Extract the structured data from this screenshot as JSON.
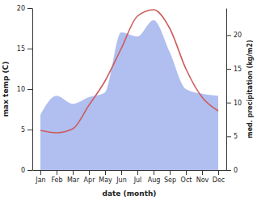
{
  "chart_data": {
    "type": "line",
    "categories": [
      "Jan",
      "Feb",
      "Mar",
      "Apr",
      "May",
      "Jun",
      "Jul",
      "Aug",
      "Sep",
      "Oct",
      "Nov",
      "Dec"
    ],
    "xlabel": "date (month)",
    "ylabel": "max temp (C)",
    "y2label": "med. precipitation (kg/m2)",
    "ylim": [
      0,
      20
    ],
    "yticks": [
      0,
      5,
      10,
      15,
      20
    ],
    "y2lim": [
      0,
      24
    ],
    "y2ticks": [
      0,
      5,
      10,
      15,
      20
    ],
    "series": [
      {
        "type": "area",
        "axis": "y2",
        "color": "#b0bff0",
        "values": [
          8.2,
          11.0,
          9.8,
          10.8,
          11.5,
          20.4,
          19.8,
          22.2,
          17.5,
          12.0,
          11.3,
          11.0
        ]
      },
      {
        "type": "line",
        "axis": "y",
        "color": "#cd5c5c",
        "values": [
          4.9,
          4.6,
          5.1,
          8.0,
          11.0,
          15.0,
          19.0,
          19.8,
          17.5,
          12.5,
          9.0,
          7.3
        ]
      }
    ]
  }
}
